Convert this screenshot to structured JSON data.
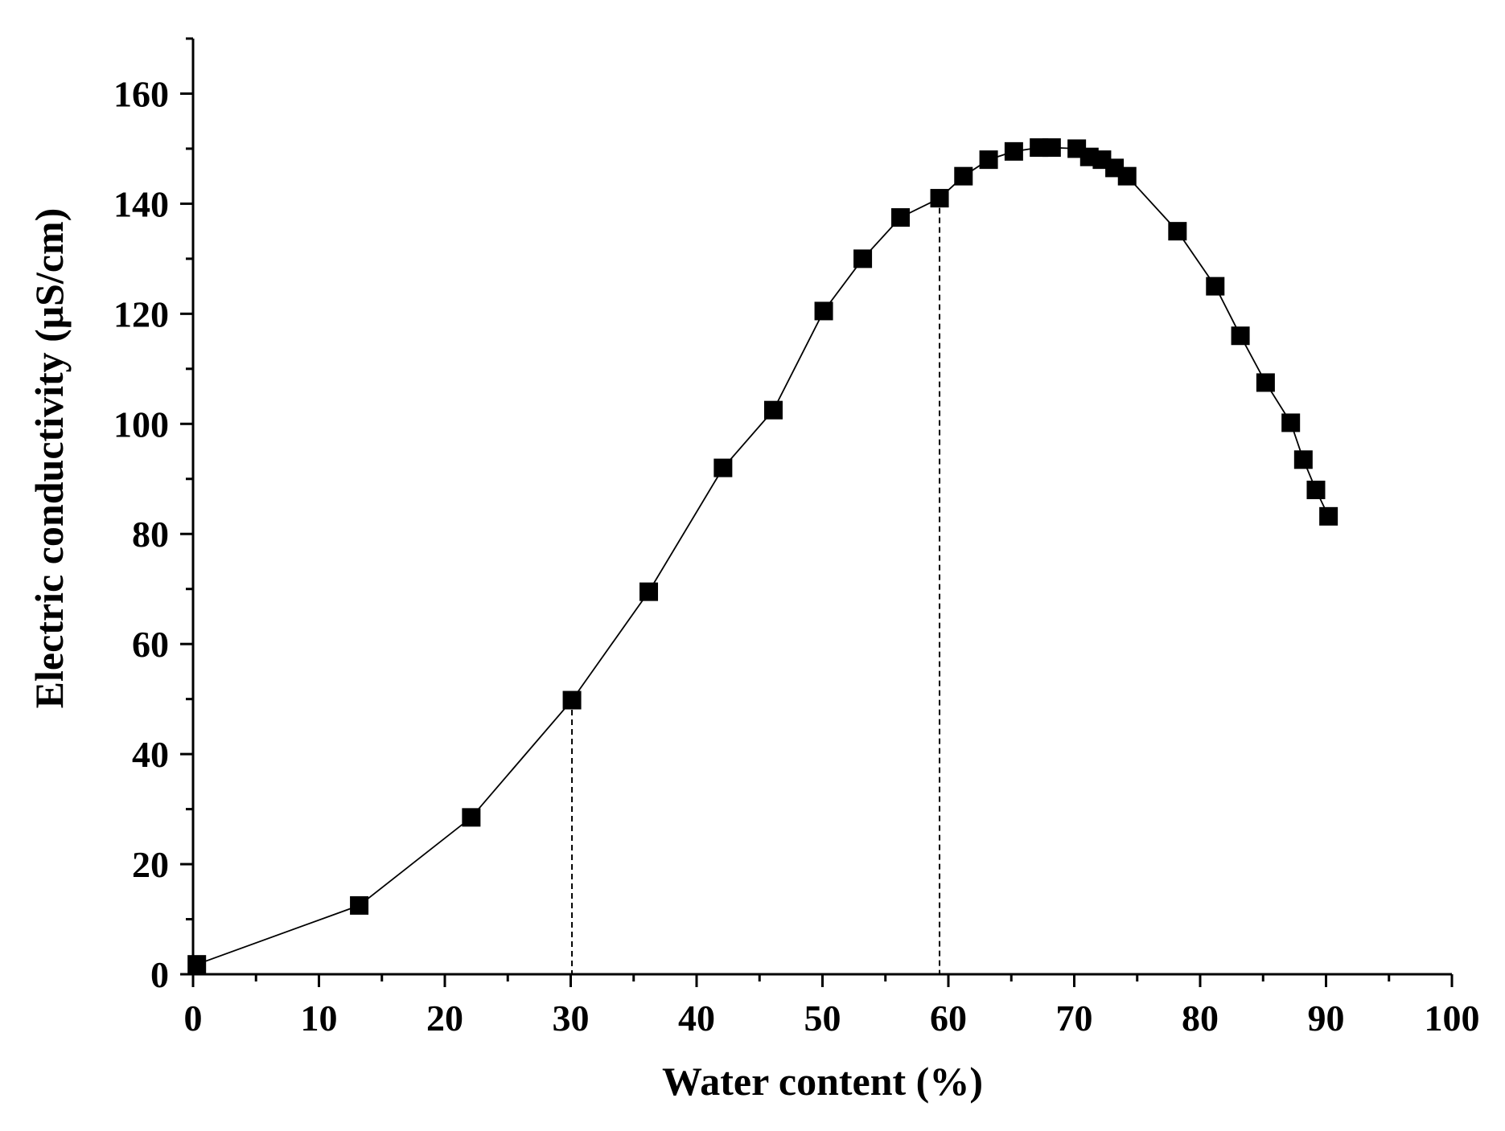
{
  "chart_data": {
    "type": "scatter",
    "xlabel": "Water content (%)",
    "ylabel": "Electric conductivity (μS/cm)",
    "xlim": [
      0,
      100
    ],
    "ylim": [
      0,
      170
    ],
    "x_ticks": [
      0,
      10,
      20,
      30,
      40,
      50,
      60,
      70,
      80,
      90,
      100
    ],
    "y_ticks": [
      0,
      20,
      40,
      60,
      80,
      100,
      120,
      140,
      160
    ],
    "grid": false,
    "legend": "none",
    "marker": "square",
    "connected": true,
    "series": [
      {
        "x": [
          0.3,
          13.2,
          22.1,
          30.1,
          36.2,
          42.1,
          46.1,
          50.1,
          53.2,
          56.2,
          59.3,
          61.2,
          63.2,
          65.2,
          67.2,
          68.2,
          70.2,
          71.2,
          72.2,
          73.2,
          74.2,
          78.2,
          81.2,
          83.2,
          85.2,
          87.2,
          88.2,
          89.2,
          90.2
        ],
        "y": [
          1.8,
          12.5,
          28.5,
          49.8,
          69.5,
          92,
          102.5,
          120.5,
          130,
          137.5,
          141,
          145,
          148,
          149.5,
          150.2,
          150.2,
          150,
          148.5,
          148,
          146.5,
          145,
          135,
          125,
          116,
          107.5,
          100.2,
          93.5,
          88,
          83.2
        ]
      }
    ],
    "reference_lines": [
      {
        "x": 30.1,
        "y": 49.8,
        "style": "dashed"
      },
      {
        "x": 59.3,
        "y": 141,
        "style": "dashed"
      }
    ],
    "colors": {
      "marker": "#000000",
      "line": "#000000",
      "axis": "#000000"
    }
  }
}
